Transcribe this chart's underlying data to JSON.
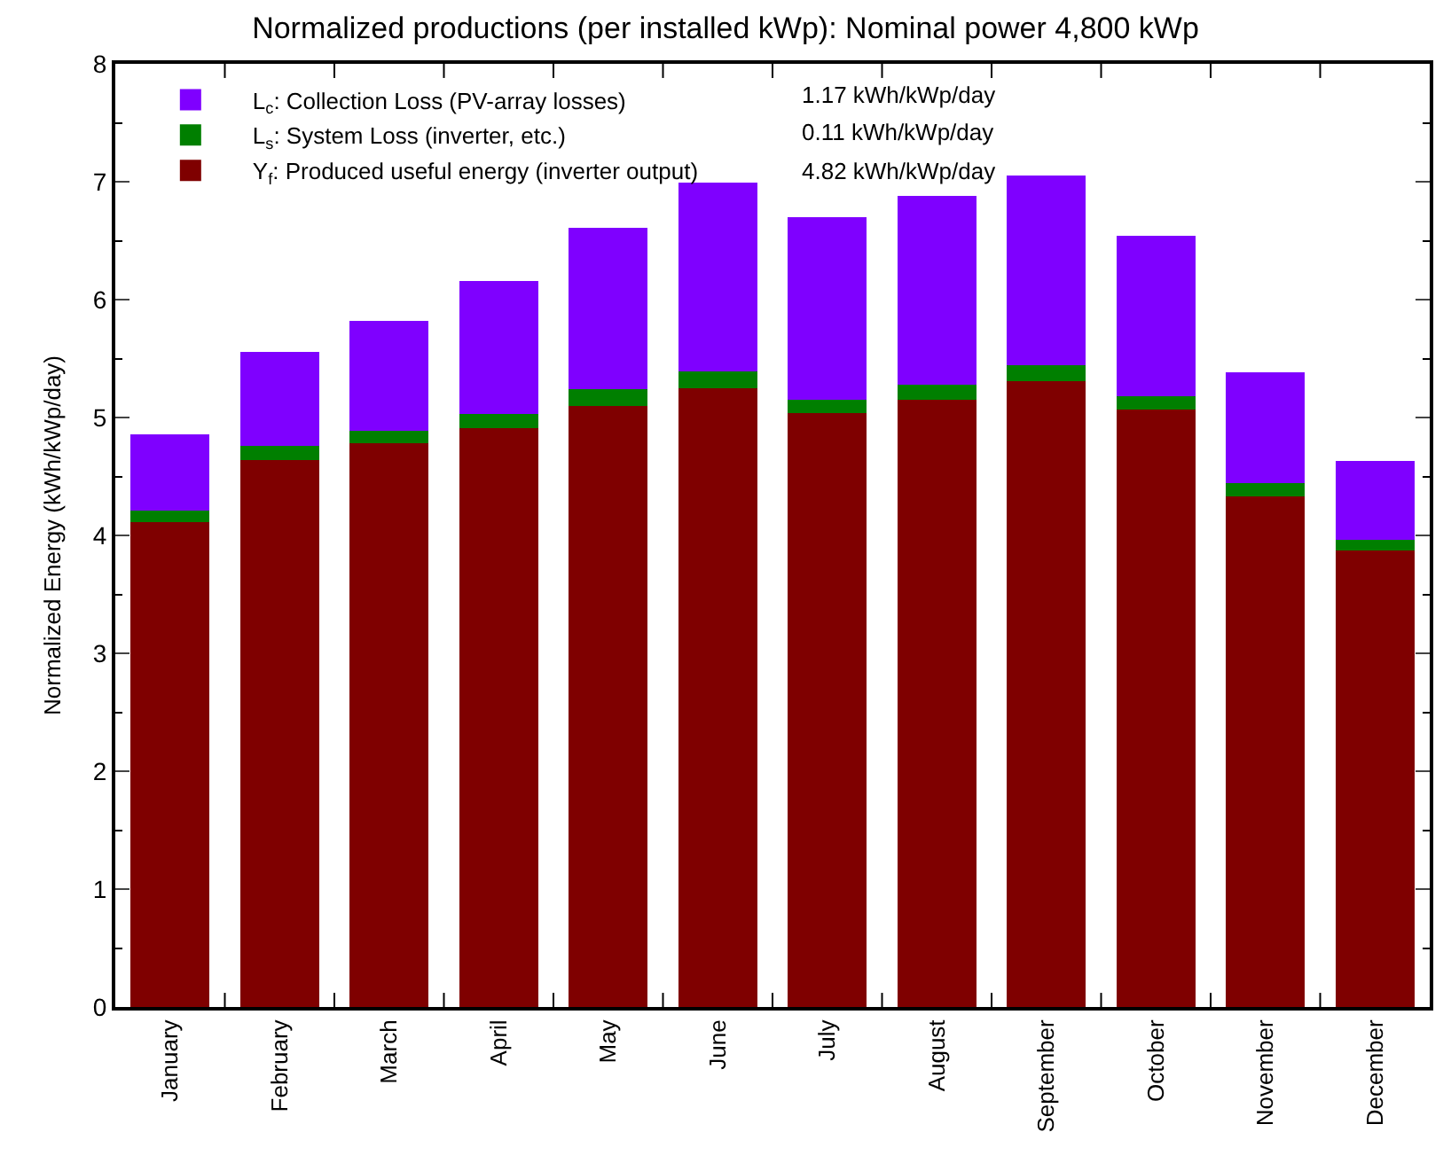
{
  "chart_data": {
    "type": "bar",
    "stacked": true,
    "title": "Normalized productions (per installed kWp): Nominal power 4,800 kWp",
    "ylabel": "Normalized Energy (kWh/kWp/day)",
    "categories": [
      "January",
      "February",
      "March",
      "April",
      "May",
      "June",
      "July",
      "August",
      "September",
      "October",
      "November",
      "December"
    ],
    "series": [
      {
        "name": "Y$_{f}$: Produced useful energy (inverter output)",
        "color": "#7f0000",
        "values": [
          4.11,
          4.64,
          4.78,
          4.91,
          5.1,
          5.25,
          5.04,
          5.15,
          5.31,
          5.07,
          4.33,
          3.87
        ]
      },
      {
        "name": "L$_{s}$: System Loss (inverter, etc.)",
        "color": "#007f00",
        "values": [
          0.1,
          0.12,
          0.11,
          0.12,
          0.14,
          0.14,
          0.11,
          0.13,
          0.13,
          0.11,
          0.11,
          0.09
        ]
      },
      {
        "name": "L$_{c}$: Collection Loss (PV-array losses)",
        "color": "#7f00ff",
        "values": [
          0.65,
          0.8,
          0.93,
          1.13,
          1.37,
          1.6,
          1.55,
          1.6,
          1.61,
          1.36,
          0.94,
          0.67
        ]
      }
    ],
    "annotations": [
      "1.17 kWh/kWp/day",
      "0.11 kWh/kWp/day",
      "4.82 kWh/kWp/day"
    ],
    "ylim": [
      0,
      8
    ],
    "yticks": [
      0,
      1,
      2,
      3,
      4,
      5,
      6,
      7,
      8
    ],
    "legend": "top left",
    "grid": false
  }
}
